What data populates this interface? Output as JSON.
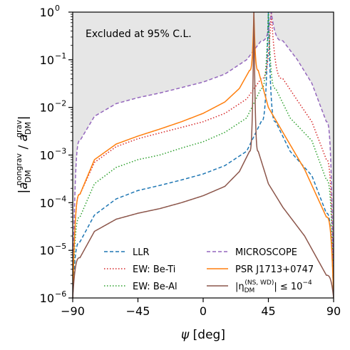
{
  "chart_data": {
    "type": "line",
    "title": "",
    "xlabel": "ψ [deg]",
    "ylabel": "|a_DM^nongrav / a_DM^grav|",
    "xlim": [
      -90,
      90
    ],
    "ylim": [
      1e-06,
      1
    ],
    "yscale": "log",
    "xticks": [
      -90,
      -45,
      0,
      45,
      90
    ],
    "xtick_labels": [
      "−90",
      "−45",
      "0",
      "45",
      "90"
    ],
    "yticks": [
      {
        "base": "10",
        "exp": "−6"
      },
      {
        "base": "10",
        "exp": "−5"
      },
      {
        "base": "10",
        "exp": "−4"
      },
      {
        "base": "10",
        "exp": "−3"
      },
      {
        "base": "10",
        "exp": "−2"
      },
      {
        "base": "10",
        "exp": "−1"
      },
      {
        "base": "10",
        "exp": "0"
      }
    ],
    "grid": false,
    "annotation": "Excluded at 95% C.L.",
    "legend_placement": "lower-center",
    "colors": {
      "llr": "#1f77b4",
      "ew_beti": "#d62728",
      "ew_beal": "#2ca02c",
      "microscope": "#9467bd",
      "psr": "#ff7f0e",
      "eta": "#8c564b",
      "excluded_fill": "#e6e6e6"
    },
    "series": [
      {
        "key": "llr",
        "name": "LLR",
        "style": "dashed",
        "pole_deg": 45,
        "x": [
          -90,
          -85,
          -75,
          -60,
          -45,
          -30,
          -15,
          0,
          15,
          30,
          40,
          45,
          50,
          60,
          75,
          85,
          90
        ],
        "y": [
          1e-06,
          1.5e-05,
          5.5e-05,
          0.00012,
          0.00018,
          0.00023,
          0.0003,
          0.0004,
          0.0006,
          0.0012,
          0.005,
          1,
          0.005,
          0.0012,
          0.00037,
          6e-05,
          1e-06
        ]
      },
      {
        "key": "ew_beti",
        "name": "EW: Be-Ti",
        "style": "dotted",
        "pole_deg": 47,
        "x": [
          -90,
          -85,
          -75,
          -60,
          -45,
          -30,
          -15,
          0,
          15,
          30,
          40,
          47,
          55,
          65,
          75,
          85,
          90
        ],
        "y": [
          1e-06,
          0.00015,
          0.0007,
          0.0015,
          0.0022,
          0.0029,
          0.0038,
          0.005,
          0.0075,
          0.015,
          0.04,
          1,
          0.04,
          0.014,
          0.005,
          0.0008,
          1e-06
        ]
      },
      {
        "key": "ew_beal",
        "name": "EW: Be-Al",
        "style": "dotted",
        "pole_deg": 45,
        "x": [
          -90,
          -85,
          -75,
          -60,
          -45,
          -30,
          -15,
          0,
          15,
          30,
          40,
          45,
          50,
          60,
          75,
          85,
          90
        ],
        "y": [
          1e-06,
          5e-05,
          0.00025,
          0.00055,
          0.0008,
          0.001,
          0.0014,
          0.0019,
          0.003,
          0.006,
          0.025,
          1,
          0.025,
          0.006,
          0.002,
          0.0003,
          1e-06
        ]
      },
      {
        "key": "microscope",
        "name": "MICROSCOPE",
        "style": "dashed",
        "pole_deg": 47,
        "x": [
          -90,
          -85,
          -75,
          -60,
          -45,
          -30,
          -15,
          0,
          15,
          30,
          40,
          47,
          55,
          65,
          75,
          85,
          90
        ],
        "y": [
          1e-06,
          0.002,
          0.0065,
          0.012,
          0.016,
          0.02,
          0.026,
          0.034,
          0.05,
          0.1,
          0.25,
          1,
          0.25,
          0.1,
          0.032,
          0.005,
          1e-06
        ]
      },
      {
        "key": "psr",
        "name": "PSR J1713+0747",
        "style": "solid",
        "pole_deg": 35,
        "x": [
          -90,
          -85,
          -75,
          -60,
          -45,
          -30,
          -15,
          0,
          15,
          25,
          32,
          35,
          38,
          45,
          55,
          70,
          85,
          90
        ],
        "y": [
          1e-06,
          0.00015,
          0.0008,
          0.0017,
          0.0025,
          0.0035,
          0.005,
          0.0075,
          0.013,
          0.025,
          0.06,
          1,
          0.06,
          0.01,
          0.003,
          0.0005,
          5e-05,
          1e-06
        ]
      },
      {
        "key": "eta",
        "name": "|η_DM^(NS,WD)| ≤ 10^−4",
        "style": "solid",
        "pole_deg": 35,
        "x": [
          -90,
          -85,
          -75,
          -60,
          -45,
          -30,
          -15,
          0,
          15,
          25,
          32,
          35,
          38,
          45,
          55,
          70,
          85,
          90
        ],
        "y": [
          1e-06,
          7e-06,
          2.5e-05,
          4.5e-05,
          6e-05,
          7.5e-05,
          0.0001,
          0.00014,
          0.00022,
          0.00045,
          0.0012,
          1,
          0.0012,
          0.00025,
          8e-05,
          2e-05,
          3e-06,
          1e-06
        ]
      }
    ],
    "legend_labels": {
      "llr": "LLR",
      "ew_beti": "EW: Be-Ti",
      "ew_beal": "EW: Be-Al",
      "microscope": "MICROSCOPE",
      "psr": "PSR J1713+0747",
      "eta_prefix": "|η",
      "eta_sub": "DM",
      "eta_sup": "(NS, WD)",
      "eta_suffix": "| ≤ 10",
      "eta_exp": "−4"
    },
    "axis_text": {
      "x_psi": "ψ",
      "x_unit": " [deg]",
      "y_bar": "|",
      "y_a": "a",
      "y_sub": "DM",
      "y_sup_num": "nongrav",
      "y_slash": " / ",
      "y_sup_den": "grav"
    }
  }
}
